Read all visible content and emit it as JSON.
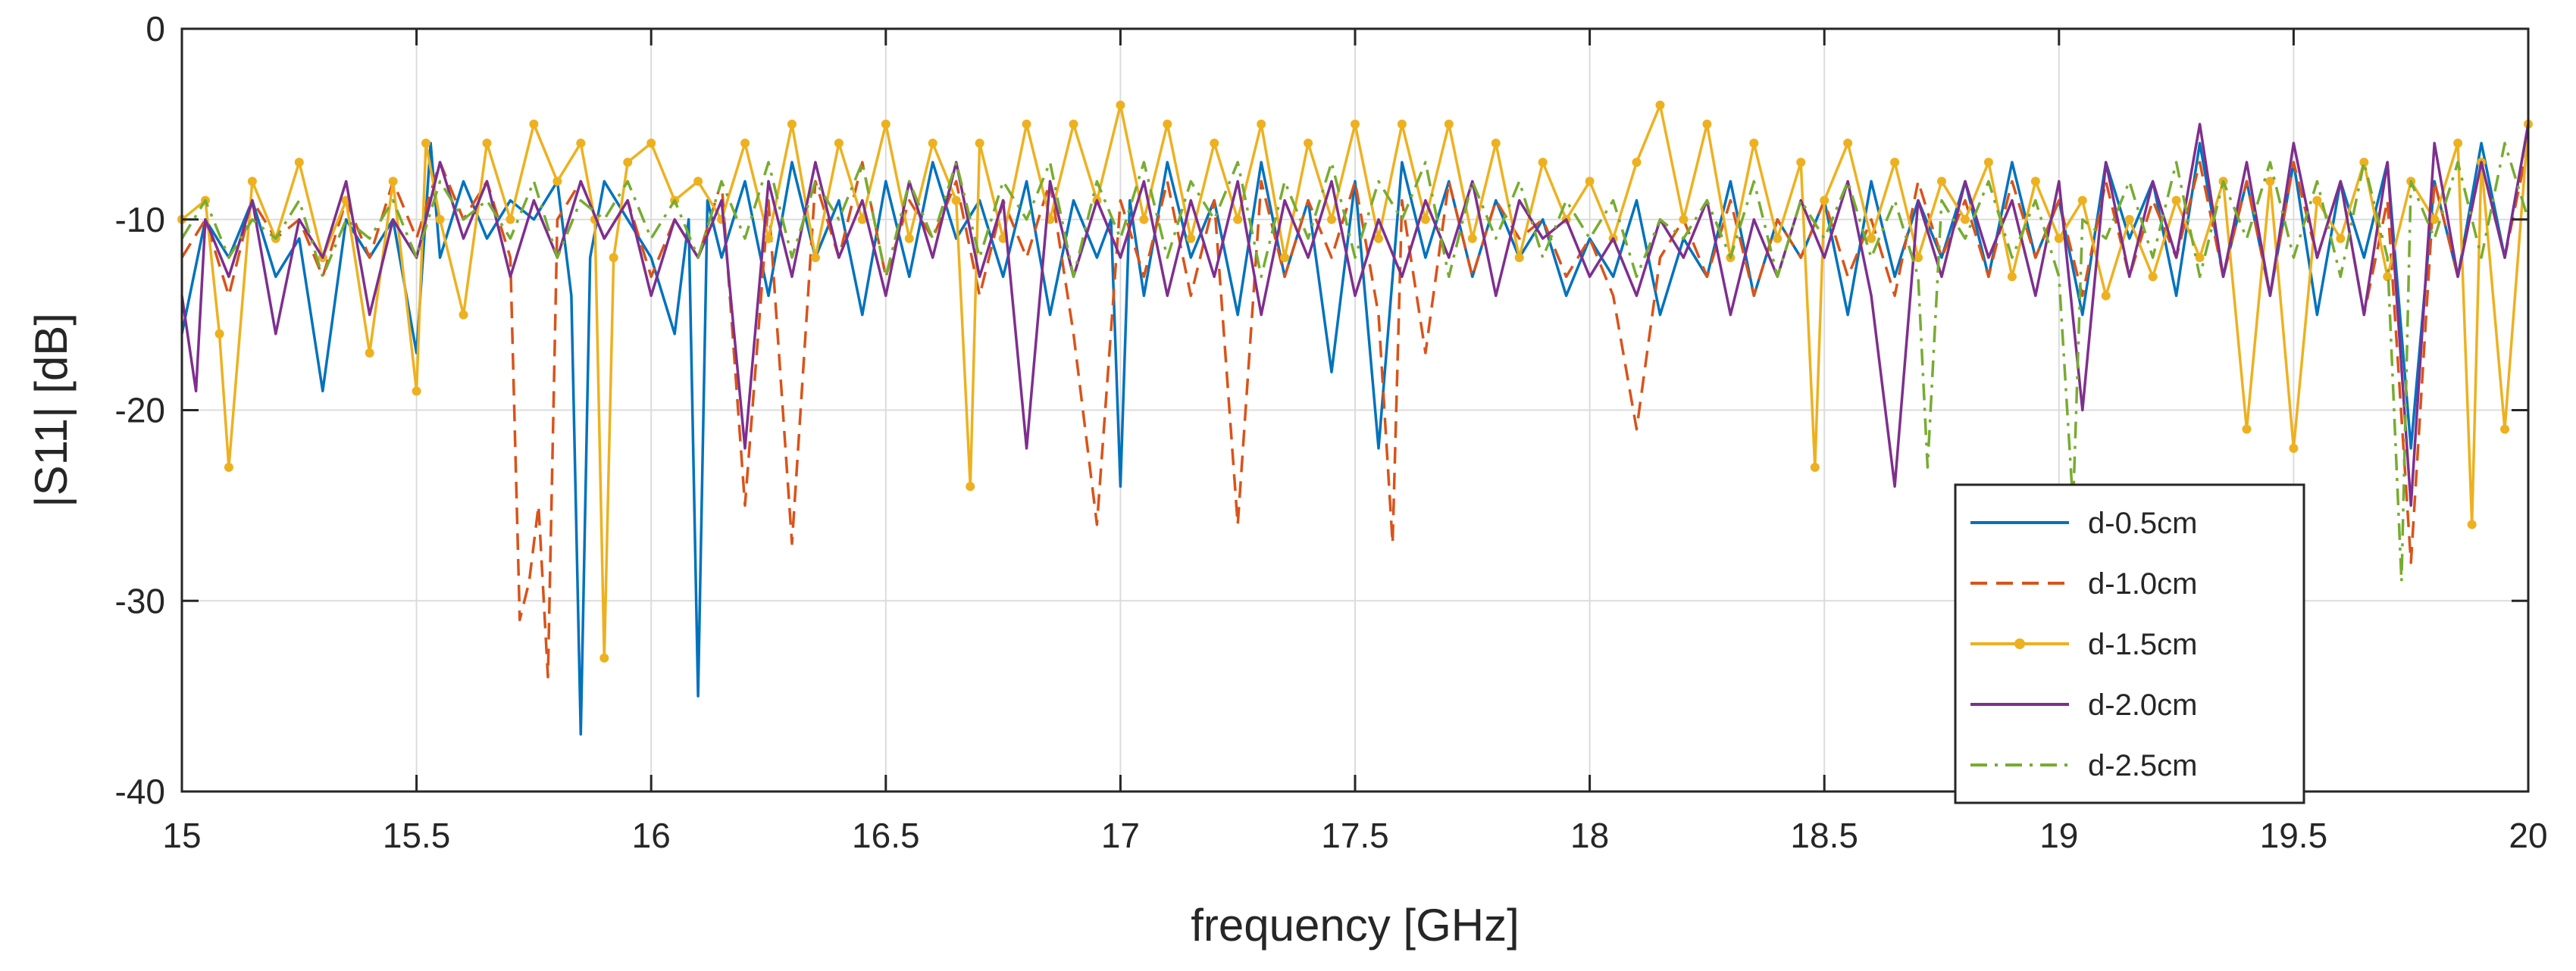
{
  "chart_data": {
    "type": "line",
    "title": "",
    "xlabel": "frequency [GHz]",
    "ylabel": "|S11| [dB]",
    "xlim": [
      15,
      20
    ],
    "ylim": [
      -40,
      0
    ],
    "x_ticks": [
      15,
      15.5,
      16,
      16.5,
      17,
      17.5,
      18,
      18.5,
      19,
      19.5,
      20
    ],
    "x_tick_labels": [
      "15",
      "15.5",
      "16",
      "16.5",
      "17",
      "17.5",
      "18",
      "18.5",
      "19",
      "19.5",
      "20"
    ],
    "y_ticks": [
      0,
      -10,
      -20,
      -30,
      -40
    ],
    "y_tick_labels": [
      "0",
      "-10",
      "-20",
      "-30",
      "-40"
    ],
    "grid": true,
    "legend_position": "bottom-right",
    "series": [
      {
        "name": "d-0.5cm",
        "color": "#0072BD",
        "style": "solid",
        "marker": "none",
        "x": [
          15.0,
          15.05,
          15.1,
          15.15,
          15.2,
          15.25,
          15.3,
          15.35,
          15.4,
          15.45,
          15.5,
          15.53,
          15.55,
          15.6,
          15.65,
          15.7,
          15.75,
          15.8,
          15.83,
          15.85,
          15.87,
          15.9,
          15.95,
          16.0,
          16.05,
          16.08,
          16.1,
          16.12,
          16.15,
          16.2,
          16.25,
          16.3,
          16.35,
          16.4,
          16.45,
          16.5,
          16.55,
          16.6,
          16.65,
          16.7,
          16.75,
          16.8,
          16.85,
          16.9,
          16.95,
          16.98,
          17.0,
          17.02,
          17.05,
          17.1,
          17.15,
          17.2,
          17.25,
          17.3,
          17.35,
          17.4,
          17.45,
          17.5,
          17.55,
          17.6,
          17.65,
          17.7,
          17.75,
          17.8,
          17.85,
          17.9,
          17.95,
          18.0,
          18.05,
          18.1,
          18.15,
          18.2,
          18.25,
          18.3,
          18.35,
          18.4,
          18.45,
          18.5,
          18.55,
          18.6,
          18.65,
          18.7,
          18.75,
          18.8,
          18.85,
          18.9,
          18.95,
          19.0,
          19.05,
          19.1,
          19.15,
          19.2,
          19.25,
          19.3,
          19.35,
          19.4,
          19.45,
          19.5,
          19.55,
          19.6,
          19.65,
          19.7,
          19.75,
          19.8,
          19.85,
          19.9,
          19.95,
          20.0
        ],
        "y": [
          -16,
          -10,
          -12,
          -9,
          -13,
          -11,
          -19,
          -10,
          -12,
          -10,
          -17,
          -6,
          -12,
          -8,
          -11,
          -9,
          -10,
          -8,
          -14,
          -37,
          -12,
          -8,
          -10,
          -12,
          -16,
          -10,
          -35,
          -9,
          -12,
          -8,
          -14,
          -7,
          -12,
          -9,
          -15,
          -8,
          -13,
          -7,
          -11,
          -9,
          -13,
          -8,
          -15,
          -9,
          -12,
          -10,
          -24,
          -9,
          -14,
          -7,
          -12,
          -9,
          -15,
          -7,
          -13,
          -9,
          -18,
          -8,
          -22,
          -7,
          -12,
          -8,
          -13,
          -9,
          -12,
          -10,
          -14,
          -11,
          -13,
          -9,
          -15,
          -11,
          -13,
          -8,
          -14,
          -10,
          -12,
          -9,
          -15,
          -8,
          -13,
          -9,
          -12,
          -8,
          -13,
          -7,
          -12,
          -9,
          -15,
          -7,
          -11,
          -8,
          -14,
          -6,
          -13,
          -8,
          -14,
          -7,
          -15,
          -8,
          -12,
          -7,
          -22,
          -8,
          -13,
          -6,
          -12,
          -5
        ]
      },
      {
        "name": "d-1.0cm",
        "color": "#D95319",
        "style": "dashed",
        "marker": "none",
        "x": [
          15.0,
          15.05,
          15.1,
          15.15,
          15.2,
          15.25,
          15.3,
          15.35,
          15.4,
          15.45,
          15.5,
          15.55,
          15.6,
          15.65,
          15.7,
          15.72,
          15.74,
          15.76,
          15.78,
          15.8,
          15.85,
          15.9,
          15.95,
          16.0,
          16.05,
          16.1,
          16.15,
          16.2,
          16.25,
          16.3,
          16.35,
          16.4,
          16.45,
          16.5,
          16.55,
          16.6,
          16.65,
          16.7,
          16.75,
          16.8,
          16.85,
          16.9,
          16.95,
          17.0,
          17.05,
          17.1,
          17.15,
          17.2,
          17.25,
          17.3,
          17.35,
          17.4,
          17.45,
          17.5,
          17.55,
          17.58,
          17.6,
          17.65,
          17.7,
          17.75,
          17.8,
          17.85,
          17.9,
          17.95,
          18.0,
          18.05,
          18.1,
          18.15,
          18.2,
          18.25,
          18.3,
          18.35,
          18.4,
          18.45,
          18.5,
          18.55,
          18.6,
          18.65,
          18.7,
          18.75,
          18.8,
          18.85,
          18.9,
          18.95,
          19.0,
          19.05,
          19.1,
          19.15,
          19.2,
          19.25,
          19.3,
          19.35,
          19.4,
          19.45,
          19.5,
          19.55,
          19.6,
          19.65,
          19.7,
          19.75,
          19.8,
          19.85,
          19.9,
          19.95,
          20.0
        ],
        "y": [
          -12,
          -10,
          -14,
          -9,
          -11,
          -10,
          -13,
          -9,
          -12,
          -8,
          -11,
          -7,
          -10,
          -8,
          -12,
          -31,
          -29,
          -25,
          -34,
          -10,
          -8,
          -11,
          -9,
          -13,
          -10,
          -12,
          -8,
          -25,
          -9,
          -27,
          -8,
          -12,
          -7,
          -13,
          -9,
          -11,
          -8,
          -14,
          -9,
          -12,
          -8,
          -16,
          -26,
          -9,
          -13,
          -8,
          -14,
          -9,
          -26,
          -8,
          -13,
          -9,
          -12,
          -8,
          -15,
          -27,
          -9,
          -17,
          -8,
          -13,
          -9,
          -11,
          -10,
          -13,
          -11,
          -14,
          -21,
          -12,
          -10,
          -13,
          -9,
          -14,
          -10,
          -12,
          -9,
          -13,
          -10,
          -14,
          -8,
          -12,
          -9,
          -13,
          -8,
          -12,
          -9,
          -14,
          -8,
          -13,
          -9,
          -12,
          -7,
          -13,
          -8,
          -14,
          -7,
          -12,
          -8,
          -15,
          -9,
          -28,
          -8,
          -13,
          -7,
          -12,
          -6
        ]
      },
      {
        "name": "d-1.5cm",
        "color": "#EDB120",
        "style": "solid",
        "marker": "dot",
        "x": [
          15.0,
          15.05,
          15.08,
          15.1,
          15.15,
          15.2,
          15.25,
          15.3,
          15.35,
          15.4,
          15.45,
          15.5,
          15.52,
          15.55,
          15.6,
          15.65,
          15.7,
          15.75,
          15.8,
          15.85,
          15.88,
          15.9,
          15.92,
          15.95,
          16.0,
          16.05,
          16.1,
          16.15,
          16.2,
          16.25,
          16.3,
          16.35,
          16.4,
          16.45,
          16.5,
          16.55,
          16.6,
          16.65,
          16.68,
          16.7,
          16.75,
          16.8,
          16.85,
          16.9,
          16.95,
          17.0,
          17.05,
          17.1,
          17.15,
          17.2,
          17.25,
          17.3,
          17.35,
          17.4,
          17.45,
          17.5,
          17.55,
          17.6,
          17.65,
          17.7,
          17.75,
          17.8,
          17.85,
          17.9,
          17.95,
          18.0,
          18.05,
          18.1,
          18.15,
          18.2,
          18.25,
          18.3,
          18.35,
          18.4,
          18.45,
          18.48,
          18.5,
          18.55,
          18.6,
          18.65,
          18.7,
          18.75,
          18.8,
          18.85,
          18.9,
          18.95,
          19.0,
          19.05,
          19.1,
          19.15,
          19.2,
          19.25,
          19.3,
          19.35,
          19.4,
          19.45,
          19.5,
          19.55,
          19.6,
          19.65,
          19.7,
          19.75,
          19.8,
          19.85,
          19.88,
          19.9,
          19.95,
          20.0
        ],
        "y": [
          -10,
          -9,
          -16,
          -23,
          -8,
          -11,
          -7,
          -12,
          -9,
          -17,
          -8,
          -19,
          -6,
          -10,
          -15,
          -6,
          -10,
          -5,
          -8,
          -6,
          -10,
          -33,
          -12,
          -7,
          -6,
          -9,
          -8,
          -10,
          -6,
          -11,
          -5,
          -12,
          -6,
          -10,
          -5,
          -11,
          -6,
          -9,
          -24,
          -6,
          -11,
          -5,
          -10,
          -5,
          -9,
          -4,
          -10,
          -5,
          -11,
          -6,
          -10,
          -5,
          -12,
          -6,
          -10,
          -5,
          -11,
          -5,
          -10,
          -5,
          -11,
          -6,
          -12,
          -7,
          -10,
          -8,
          -11,
          -7,
          -4,
          -10,
          -5,
          -12,
          -6,
          -11,
          -7,
          -23,
          -9,
          -6,
          -11,
          -7,
          -12,
          -8,
          -10,
          -7,
          -13,
          -8,
          -11,
          -9,
          -14,
          -10,
          -13,
          -9,
          -12,
          -8,
          -21,
          -8,
          -22,
          -9,
          -11,
          -7,
          -13,
          -8,
          -10,
          -6,
          -26,
          -7,
          -21,
          -5
        ]
      },
      {
        "name": "d-2.0cm",
        "color": "#7E2F8E",
        "style": "solid",
        "marker": "none",
        "x": [
          15.0,
          15.03,
          15.05,
          15.1,
          15.15,
          15.2,
          15.25,
          15.3,
          15.35,
          15.4,
          15.45,
          15.5,
          15.55,
          15.6,
          15.65,
          15.7,
          15.75,
          15.8,
          15.85,
          15.9,
          15.95,
          16.0,
          16.05,
          16.1,
          16.15,
          16.2,
          16.25,
          16.3,
          16.35,
          16.4,
          16.45,
          16.5,
          16.55,
          16.6,
          16.65,
          16.7,
          16.75,
          16.8,
          16.85,
          16.9,
          16.95,
          17.0,
          17.05,
          17.1,
          17.15,
          17.2,
          17.25,
          17.3,
          17.35,
          17.4,
          17.45,
          17.5,
          17.55,
          17.6,
          17.65,
          17.7,
          17.75,
          17.8,
          17.85,
          17.9,
          17.95,
          18.0,
          18.05,
          18.1,
          18.15,
          18.2,
          18.25,
          18.3,
          18.35,
          18.4,
          18.45,
          18.5,
          18.55,
          18.6,
          18.65,
          18.7,
          18.75,
          18.8,
          18.85,
          18.9,
          18.95,
          19.0,
          19.05,
          19.1,
          19.15,
          19.2,
          19.25,
          19.3,
          19.35,
          19.4,
          19.45,
          19.5,
          19.55,
          19.6,
          19.65,
          19.7,
          19.75,
          19.8,
          19.85,
          19.9,
          19.95,
          20.0
        ],
        "y": [
          -14,
          -19,
          -10,
          -13,
          -9,
          -16,
          -10,
          -12,
          -8,
          -15,
          -10,
          -12,
          -7,
          -11,
          -8,
          -13,
          -9,
          -12,
          -8,
          -11,
          -9,
          -14,
          -10,
          -12,
          -9,
          -22,
          -8,
          -13,
          -7,
          -12,
          -9,
          -14,
          -8,
          -12,
          -7,
          -13,
          -9,
          -22,
          -8,
          -13,
          -9,
          -12,
          -8,
          -14,
          -9,
          -13,
          -8,
          -15,
          -9,
          -12,
          -8,
          -14,
          -10,
          -13,
          -9,
          -12,
          -8,
          -14,
          -9,
          -11,
          -10,
          -13,
          -11,
          -14,
          -10,
          -12,
          -9,
          -15,
          -10,
          -13,
          -9,
          -12,
          -8,
          -14,
          -24,
          -9,
          -13,
          -8,
          -12,
          -9,
          -14,
          -8,
          -20,
          -7,
          -13,
          -8,
          -12,
          -5,
          -13,
          -7,
          -14,
          -6,
          -12,
          -8,
          -15,
          -7,
          -25,
          -6,
          -13,
          -7,
          -12,
          -5
        ]
      },
      {
        "name": "d-2.5cm",
        "color": "#77AC30",
        "style": "dashdot",
        "marker": "none",
        "x": [
          15.0,
          15.05,
          15.1,
          15.15,
          15.2,
          15.25,
          15.3,
          15.35,
          15.4,
          15.45,
          15.5,
          15.55,
          15.6,
          15.65,
          15.7,
          15.75,
          15.8,
          15.85,
          15.9,
          15.95,
          16.0,
          16.05,
          16.1,
          16.15,
          16.2,
          16.25,
          16.3,
          16.35,
          16.4,
          16.45,
          16.5,
          16.55,
          16.6,
          16.65,
          16.7,
          16.75,
          16.8,
          16.85,
          16.9,
          16.95,
          17.0,
          17.05,
          17.1,
          17.15,
          17.2,
          17.25,
          17.3,
          17.35,
          17.4,
          17.45,
          17.5,
          17.55,
          17.6,
          17.65,
          17.7,
          17.75,
          17.8,
          17.85,
          17.9,
          17.95,
          18.0,
          18.05,
          18.1,
          18.15,
          18.2,
          18.25,
          18.3,
          18.35,
          18.4,
          18.45,
          18.5,
          18.55,
          18.6,
          18.65,
          18.7,
          18.72,
          18.75,
          18.8,
          18.85,
          18.9,
          18.95,
          19.0,
          19.03,
          19.05,
          19.1,
          19.15,
          19.2,
          19.25,
          19.3,
          19.35,
          19.4,
          19.45,
          19.5,
          19.55,
          19.6,
          19.65,
          19.7,
          19.73,
          19.75,
          19.8,
          19.85,
          19.9,
          19.95,
          20.0
        ],
        "y": [
          -11,
          -9,
          -12,
          -10,
          -11,
          -9,
          -13,
          -10,
          -11,
          -9,
          -12,
          -8,
          -10,
          -9,
          -11,
          -8,
          -12,
          -9,
          -10,
          -8,
          -11,
          -9,
          -12,
          -8,
          -11,
          -7,
          -12,
          -8,
          -10,
          -7,
          -13,
          -8,
          -11,
          -7,
          -12,
          -8,
          -10,
          -7,
          -13,
          -8,
          -11,
          -7,
          -12,
          -8,
          -10,
          -7,
          -13,
          -8,
          -11,
          -7,
          -12,
          -8,
          -10,
          -7,
          -13,
          -8,
          -11,
          -8,
          -12,
          -9,
          -11,
          -9,
          -13,
          -10,
          -11,
          -9,
          -12,
          -8,
          -13,
          -9,
          -11,
          -8,
          -12,
          -9,
          -13,
          -23,
          -9,
          -11,
          -8,
          -12,
          -9,
          -13,
          -25,
          -10,
          -11,
          -8,
          -12,
          -7,
          -13,
          -8,
          -11,
          -7,
          -12,
          -8,
          -13,
          -7,
          -12,
          -29,
          -8,
          -11,
          -7,
          -12,
          -6,
          -10
        ]
      }
    ]
  }
}
